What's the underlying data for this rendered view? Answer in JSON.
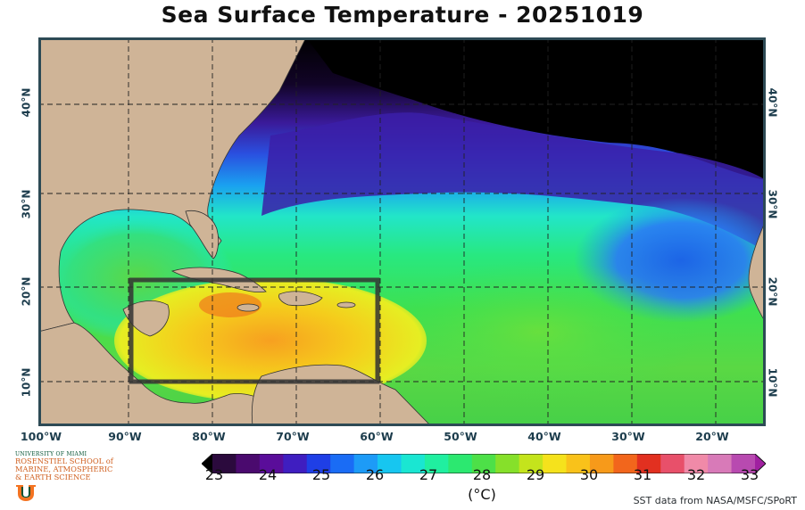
{
  "title": "Sea Surface Temperature - 20251019",
  "latitude_labels": [
    "40°N",
    "30°N",
    "20°N",
    "10°N"
  ],
  "longitude_labels": [
    "100°W",
    "90°W",
    "80°W",
    "70°W",
    "60°W",
    "50°W",
    "40°W",
    "30°W",
    "20°W"
  ],
  "colorbar": {
    "ticks": [
      "23",
      "24",
      "25",
      "26",
      "27",
      "28",
      "29",
      "30",
      "31",
      "32",
      "33"
    ],
    "unit": "(°C)",
    "colors": [
      "#2b0a3d",
      "#4a0a6e",
      "#5a0d9a",
      "#3f1ec0",
      "#1f3fe6",
      "#1a6cf5",
      "#1d9bf7",
      "#17c6f0",
      "#1ae6d2",
      "#20efa0",
      "#2ce870",
      "#4de048",
      "#86e02a",
      "#c4e41c",
      "#f5e21c",
      "#f9c21a",
      "#f79a1a",
      "#f2661c",
      "#e23020",
      "#e8506a",
      "#f08aa8",
      "#d87ab8",
      "#b84ab0"
    ],
    "under_color": "#000000",
    "over_color": "#a020a0"
  },
  "highlight_box": {
    "west_lon": "90°W",
    "east_lon": "60°W",
    "south_lat": "10°N",
    "north_lat": "22°N"
  },
  "colors": {
    "land": "#cfb497",
    "cold_water": "#000000",
    "frame": "#2d4a55",
    "grid": "#333333"
  },
  "credit": "SST data from NASA/MSFC/SPoRT",
  "logo": {
    "line1": "UNIVERSITY OF MIAMI",
    "line2": "ROSENSTIEL SCHOOL of",
    "line3": "MARINE, ATMOSPHERIC",
    "line4": "& EARTH SCIENCE"
  }
}
